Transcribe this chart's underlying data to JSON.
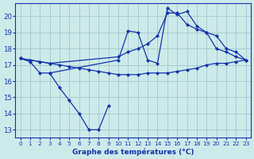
{
  "background_color": "#cdeaea",
  "grid_color": "#a0c8c8",
  "line_color": "#1133aa",
  "xlabel": "Graphe des températures (°C)",
  "ylim": [
    12.5,
    20.8
  ],
  "xlim": [
    -0.5,
    23.5
  ],
  "yticks": [
    13,
    14,
    15,
    16,
    17,
    18,
    19,
    20
  ],
  "xticks": [
    0,
    1,
    2,
    3,
    4,
    5,
    6,
    7,
    8,
    9,
    10,
    11,
    12,
    13,
    14,
    15,
    16,
    17,
    18,
    19,
    20,
    21,
    22,
    23
  ],
  "series": [
    {
      "x": [
        0,
        1,
        2,
        3,
        4,
        5,
        6,
        7,
        8,
        9,
        10,
        11,
        12,
        13,
        14,
        15,
        16,
        17,
        18,
        19,
        20,
        21,
        22,
        23
      ],
      "y": [
        17.4,
        17.3,
        17.2,
        17.1,
        17.0,
        16.9,
        16.8,
        16.7,
        16.6,
        16.5,
        16.4,
        16.4,
        16.4,
        16.5,
        16.5,
        16.5,
        16.6,
        16.7,
        16.8,
        17.0,
        17.1,
        17.1,
        17.2,
        17.3
      ]
    },
    {
      "x": [
        0,
        1,
        2,
        3,
        10,
        11,
        12,
        13,
        14,
        15,
        16,
        17,
        18,
        19,
        20,
        21,
        22,
        23
      ],
      "y": [
        17.4,
        17.3,
        17.2,
        17.1,
        17.5,
        17.8,
        18.0,
        18.3,
        18.8,
        20.2,
        20.2,
        19.5,
        19.2,
        19.0,
        18.8,
        18.0,
        17.8,
        17.3
      ]
    },
    {
      "x": [
        0,
        1,
        2,
        3,
        10,
        11,
        12,
        13,
        14,
        15,
        16,
        17,
        18,
        19,
        20,
        21,
        22,
        23
      ],
      "y": [
        17.4,
        17.2,
        16.5,
        16.5,
        17.3,
        19.1,
        19.0,
        17.3,
        17.1,
        20.5,
        20.1,
        20.3,
        19.4,
        19.0,
        18.0,
        17.8,
        17.5,
        17.3
      ]
    },
    {
      "x": [
        3,
        4,
        5,
        6,
        7,
        8,
        9
      ],
      "y": [
        16.5,
        15.6,
        14.8,
        14.0,
        13.0,
        13.0,
        14.5
      ]
    }
  ]
}
